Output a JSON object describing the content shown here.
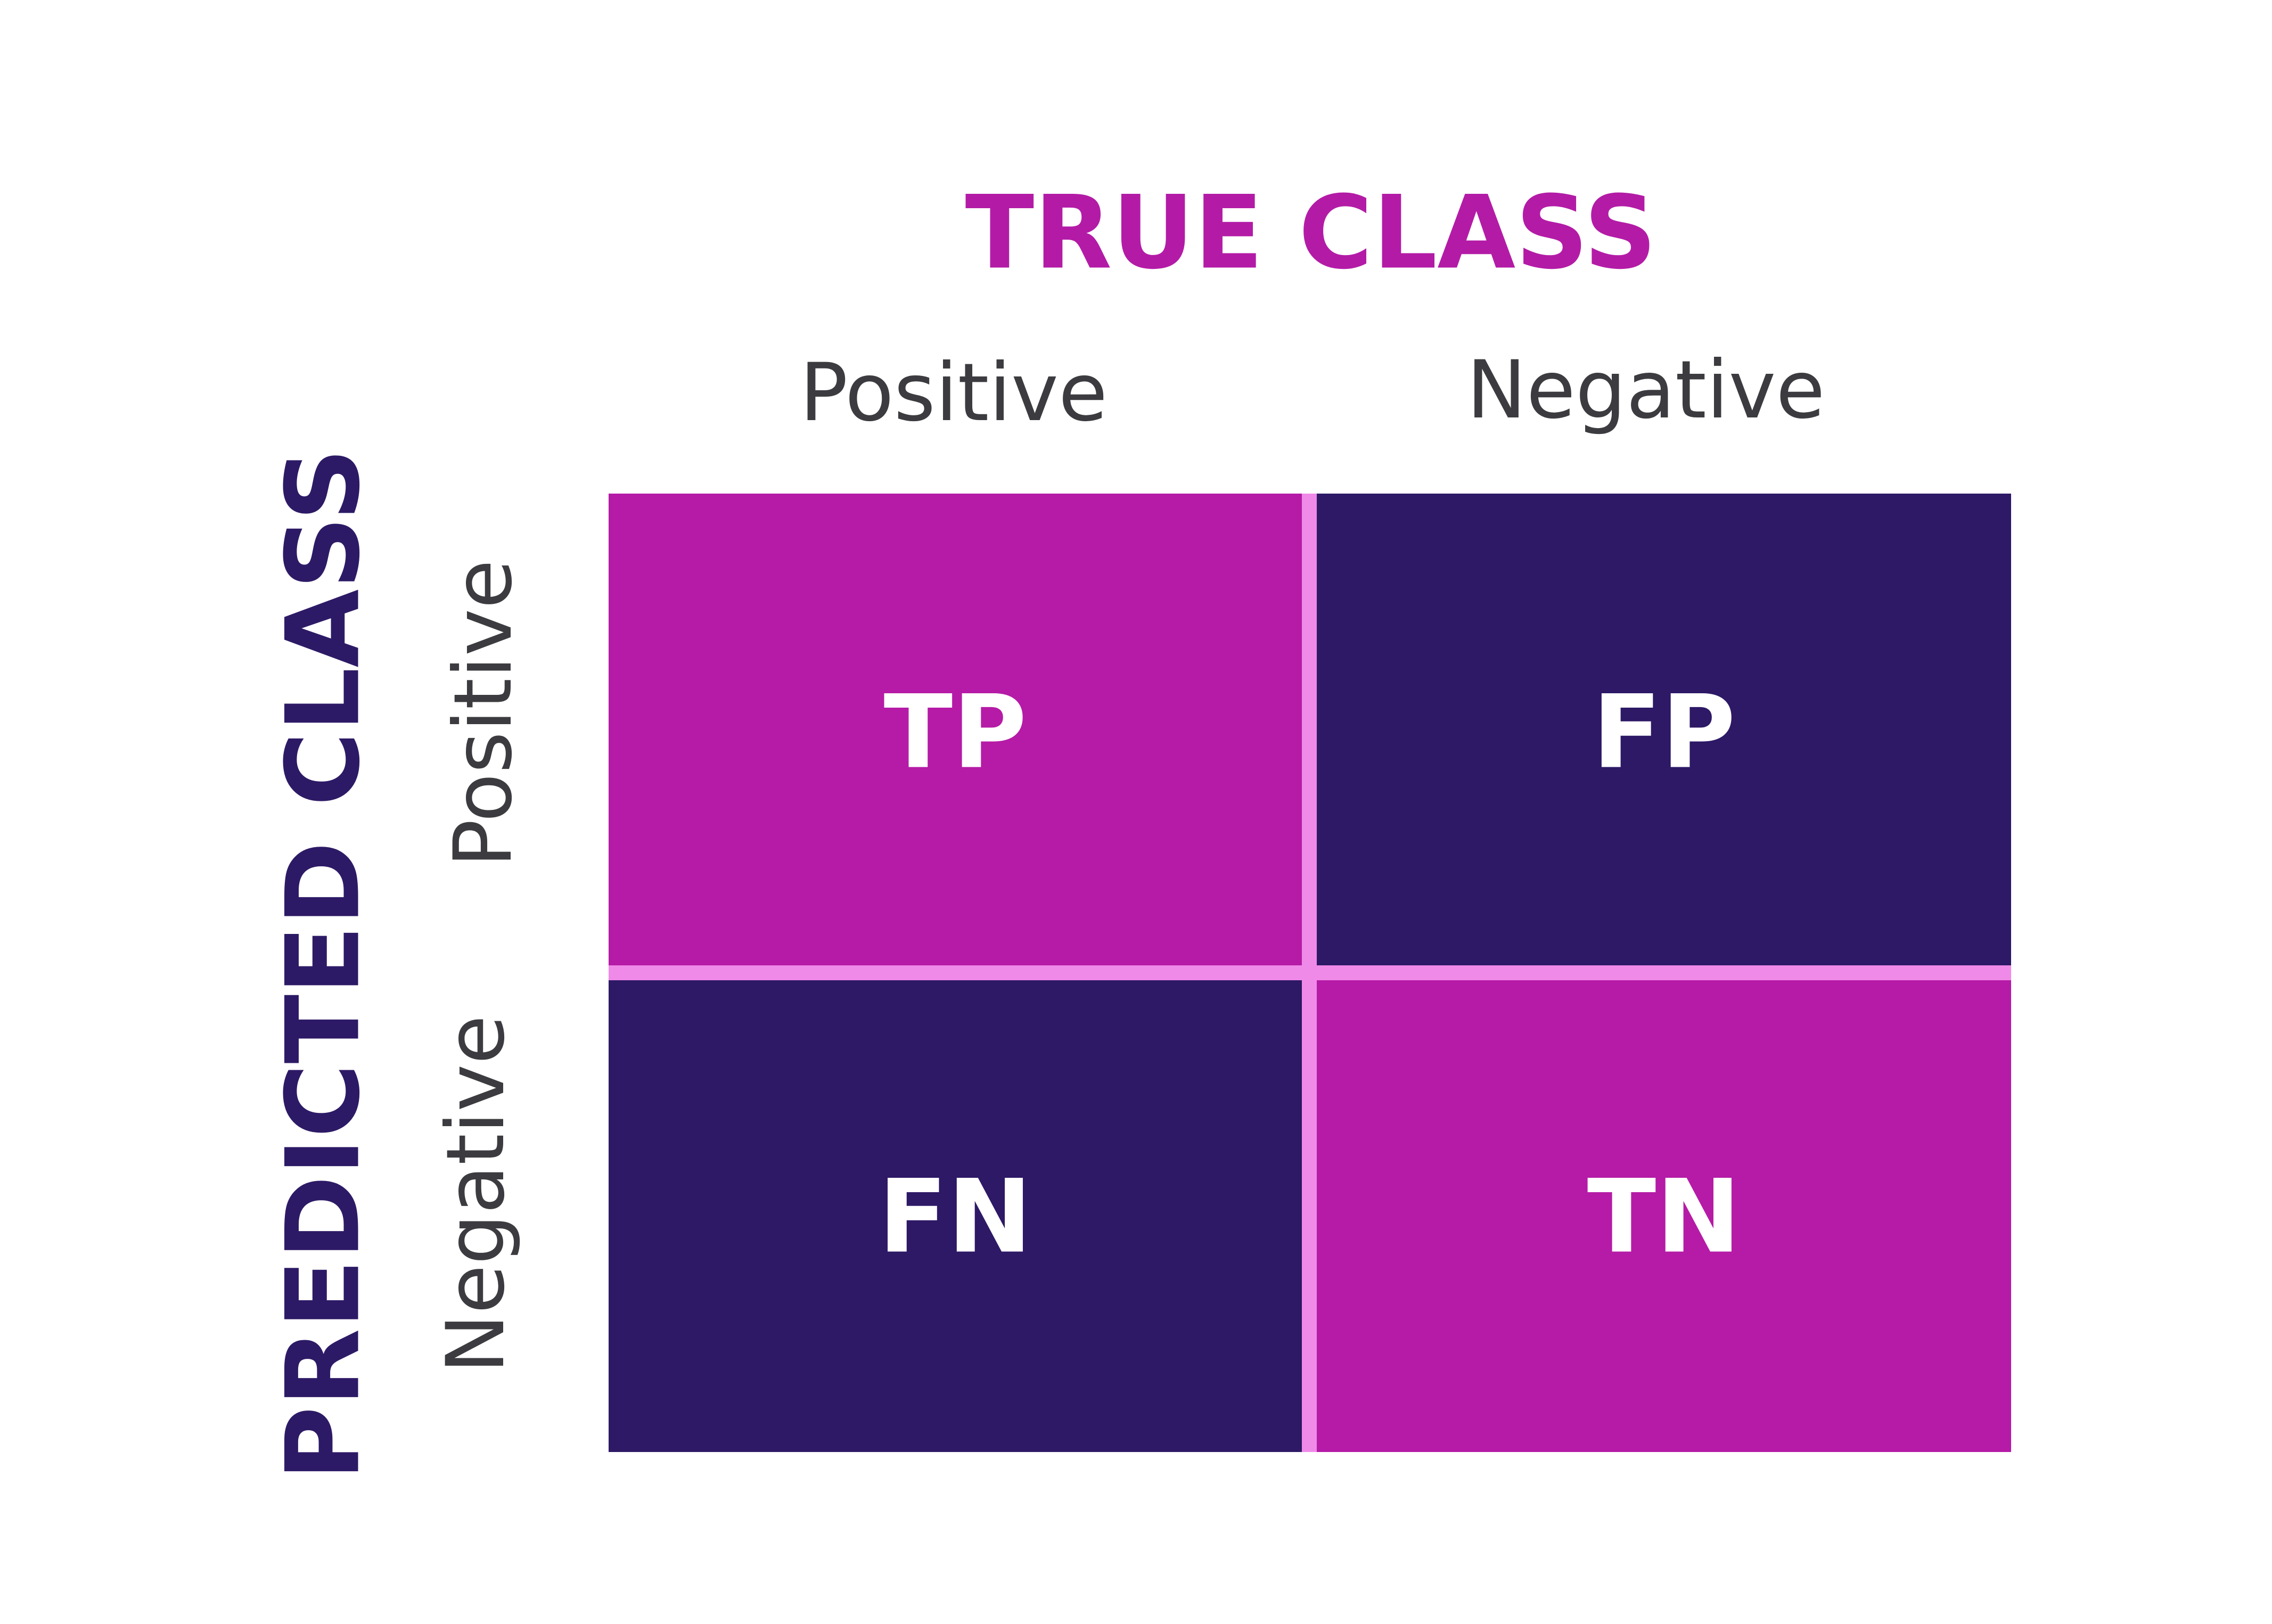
{
  "header": {
    "title": "TRUE CLASS",
    "columns": [
      "Positive",
      "Negative"
    ]
  },
  "side": {
    "title": "PREDICTED CLASS",
    "rows": [
      "Positive",
      "Negative"
    ]
  },
  "matrix": {
    "cells": [
      [
        "TP",
        "FP"
      ],
      [
        "FN",
        "TN"
      ]
    ]
  }
}
